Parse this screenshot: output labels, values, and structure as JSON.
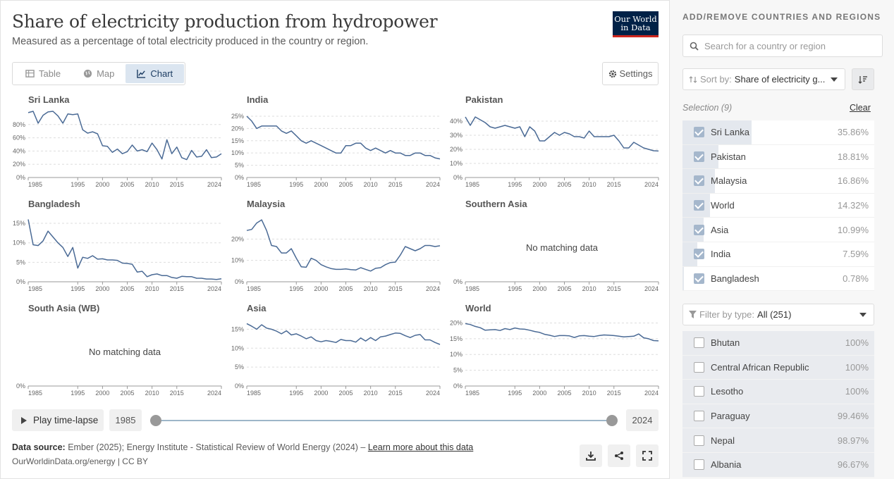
{
  "header": {
    "title": "Share of electricity production from hydropower",
    "subtitle": "Measured as a percentage of total electricity produced in the country or region.",
    "logo_line1": "Our World",
    "logo_line2": "in Data"
  },
  "tabs": [
    {
      "label": "Table",
      "icon": "table-icon"
    },
    {
      "label": "Map",
      "icon": "globe-icon"
    },
    {
      "label": "Chart",
      "icon": "chart-icon",
      "active": true
    }
  ],
  "settings_label": "Settings",
  "no_data_text": "No matching data",
  "chart_data": [
    {
      "type": "line",
      "name": "Sri Lanka",
      "ylim": [
        0,
        100
      ],
      "yticks": [
        "0%",
        "20%",
        "40%",
        "60%",
        "80%"
      ],
      "ytick_values": [
        0,
        20,
        40,
        60,
        80
      ],
      "x": [
        1985,
        1986,
        1987,
        1988,
        1989,
        1990,
        1991,
        1992,
        1993,
        1994,
        1995,
        1996,
        1997,
        1998,
        1999,
        2000,
        2001,
        2002,
        2003,
        2004,
        2005,
        2006,
        2007,
        2008,
        2009,
        2010,
        2011,
        2012,
        2013,
        2014,
        2015,
        2016,
        2017,
        2018,
        2019,
        2020,
        2021,
        2022,
        2023,
        2024
      ],
      "y": [
        98,
        100,
        82,
        94,
        99,
        100,
        93,
        82,
        96,
        95,
        96,
        72,
        67,
        69,
        66,
        48,
        47,
        38,
        43,
        36,
        39,
        49,
        40,
        42,
        39,
        52,
        42,
        28,
        57,
        36,
        46,
        30,
        27,
        41,
        31,
        32,
        42,
        30,
        31,
        36
      ]
    },
    {
      "type": "line",
      "name": "India",
      "ylim": [
        0,
        27
      ],
      "yticks": [
        "0%",
        "5%",
        "10%",
        "15%",
        "20%",
        "25%"
      ],
      "ytick_values": [
        0,
        5,
        10,
        15,
        20,
        25
      ],
      "x": [
        1985,
        1986,
        1987,
        1988,
        1989,
        1990,
        1991,
        1992,
        1993,
        1994,
        1995,
        1996,
        1997,
        1998,
        1999,
        2000,
        2001,
        2002,
        2003,
        2004,
        2005,
        2006,
        2007,
        2008,
        2009,
        2010,
        2011,
        2012,
        2013,
        2014,
        2015,
        2016,
        2017,
        2018,
        2019,
        2020,
        2021,
        2022,
        2023,
        2024
      ],
      "y": [
        25,
        23,
        20,
        21,
        21,
        21,
        21,
        19,
        18,
        19,
        17,
        15,
        14,
        15,
        14,
        13,
        12,
        11,
        10,
        10,
        13,
        13,
        14,
        14,
        12,
        11,
        12,
        11,
        10,
        11,
        10,
        10,
        9,
        9,
        10,
        10,
        9,
        9,
        8,
        7.59
      ]
    },
    {
      "type": "line",
      "name": "Pakistan",
      "ylim": [
        0,
        47
      ],
      "yticks": [
        "0%",
        "10%",
        "20%",
        "30%",
        "40%"
      ],
      "ytick_values": [
        0,
        10,
        20,
        30,
        40
      ],
      "x": [
        1985,
        1986,
        1987,
        1988,
        1989,
        1990,
        1991,
        1992,
        1993,
        1994,
        1995,
        1996,
        1997,
        1998,
        1999,
        2000,
        2001,
        2002,
        2003,
        2004,
        2005,
        2006,
        2007,
        2008,
        2009,
        2010,
        2011,
        2012,
        2013,
        2014,
        2015,
        2016,
        2017,
        2018,
        2019,
        2020,
        2021,
        2022,
        2023,
        2024
      ],
      "y": [
        43,
        37,
        43,
        41,
        39,
        36,
        35,
        36,
        37,
        36,
        35,
        36,
        29,
        36,
        33,
        26,
        26,
        29,
        32,
        30,
        32,
        31,
        29,
        29,
        28,
        33,
        29,
        29,
        29,
        29,
        30,
        26,
        21,
        21,
        25,
        23,
        21,
        20,
        19,
        18.81
      ]
    },
    {
      "type": "line",
      "name": "Bangladesh",
      "ylim": [
        0,
        17
      ],
      "yticks": [
        "0%",
        "5%",
        "10%",
        "15%"
      ],
      "ytick_values": [
        0,
        5,
        10,
        15
      ],
      "x": [
        1985,
        1986,
        1987,
        1988,
        1989,
        1990,
        1991,
        1992,
        1993,
        1994,
        1995,
        1996,
        1997,
        1998,
        1999,
        2000,
        2001,
        2002,
        2003,
        2004,
        2005,
        2006,
        2007,
        2008,
        2009,
        2010,
        2011,
        2012,
        2013,
        2014,
        2015,
        2016,
        2017,
        2018,
        2019,
        2020,
        2021,
        2022,
        2023,
        2024
      ],
      "y": [
        16,
        9.5,
        9.3,
        10.5,
        13,
        11.5,
        10,
        8.8,
        6.5,
        8.8,
        3.5,
        6.3,
        6,
        6.7,
        5.8,
        5.9,
        5.6,
        5.6,
        5.5,
        4.8,
        4.7,
        4.5,
        2.5,
        2.7,
        1.3,
        1.8,
        2,
        1.6,
        1.6,
        1.1,
        0.9,
        1.4,
        1.3,
        1.3,
        0.9,
        0.9,
        0.7,
        0.7,
        0.6,
        0.78
      ]
    },
    {
      "type": "line",
      "name": "Malaysia",
      "ylim": [
        0,
        31
      ],
      "yticks": [
        "0%",
        "10%",
        "20%"
      ],
      "ytick_values": [
        0,
        10,
        20
      ],
      "x": [
        1985,
        1986,
        1987,
        1988,
        1989,
        1990,
        1991,
        1992,
        1993,
        1994,
        1995,
        1996,
        1997,
        1998,
        1999,
        2000,
        2001,
        2002,
        2003,
        2004,
        2005,
        2006,
        2007,
        2008,
        2009,
        2010,
        2011,
        2012,
        2013,
        2014,
        2015,
        2016,
        2017,
        2018,
        2019,
        2020,
        2021,
        2022,
        2023,
        2024
      ],
      "y": [
        24,
        24.5,
        27.5,
        29,
        24,
        17,
        16.5,
        13.5,
        13.5,
        15.5,
        11,
        7,
        6.8,
        11,
        10,
        8,
        7,
        6.2,
        5.8,
        5.8,
        6,
        5.7,
        5.5,
        6.6,
        5.8,
        5,
        6.3,
        6.6,
        8,
        9,
        9.2,
        12.5,
        16.5,
        15.5,
        14.5,
        15.5,
        17,
        17,
        16.5,
        16.86
      ]
    },
    {
      "type": "line",
      "name": "Southern Asia",
      "nodata": true,
      "ylim": [
        0,
        20
      ],
      "yticks": [
        "0%"
      ],
      "ytick_values": [
        0
      ],
      "x": [],
      "y": []
    },
    {
      "type": "line",
      "name": "South Asia (WB)",
      "nodata": true,
      "ylim": [
        0,
        20
      ],
      "yticks": [
        "0%"
      ],
      "ytick_values": [
        0
      ],
      "x": [],
      "y": []
    },
    {
      "type": "line",
      "name": "Asia",
      "ylim": [
        0,
        17.5
      ],
      "yticks": [
        "0%",
        "5%",
        "10%",
        "15%"
      ],
      "ytick_values": [
        0,
        5,
        10,
        15
      ],
      "x": [
        1985,
        1986,
        1987,
        1988,
        1989,
        1990,
        1991,
        1992,
        1993,
        1994,
        1995,
        1996,
        1997,
        1998,
        1999,
        2000,
        2001,
        2002,
        2003,
        2004,
        2005,
        2006,
        2007,
        2008,
        2009,
        2010,
        2011,
        2012,
        2013,
        2014,
        2015,
        2016,
        2017,
        2018,
        2019,
        2020,
        2021,
        2022,
        2023,
        2024
      ],
      "y": [
        16.5,
        15.8,
        15,
        16.2,
        15.3,
        15,
        14.5,
        13.8,
        14.6,
        13.5,
        13.8,
        13.2,
        12.5,
        13,
        12,
        11.7,
        12,
        11.8,
        11.5,
        12.3,
        12,
        12,
        11.6,
        12.7,
        11.9,
        12.8,
        12,
        13,
        13.2,
        13.6,
        14,
        13.9,
        13.3,
        12.8,
        13.4,
        13.6,
        12.2,
        12.2,
        11.5,
        10.99
      ]
    },
    {
      "type": "line",
      "name": "World",
      "ylim": [
        0,
        21
      ],
      "yticks": [
        "0%",
        "5%",
        "10%",
        "15%",
        "20%"
      ],
      "ytick_values": [
        0,
        5,
        10,
        15,
        20
      ],
      "x": [
        1985,
        1986,
        1987,
        1988,
        1989,
        1990,
        1991,
        1992,
        1993,
        1994,
        1995,
        1996,
        1997,
        1998,
        1999,
        2000,
        2001,
        2002,
        2003,
        2004,
        2005,
        2006,
        2007,
        2008,
        2009,
        2010,
        2011,
        2012,
        2013,
        2014,
        2015,
        2016,
        2017,
        2018,
        2019,
        2020,
        2021,
        2022,
        2023,
        2024
      ],
      "y": [
        19.8,
        19.5,
        18.9,
        18.5,
        17.7,
        17.8,
        17.9,
        17.6,
        18.2,
        17.9,
        18.4,
        18.1,
        18,
        17.7,
        17.3,
        17,
        16.4,
        16.1,
        15.7,
        16,
        16,
        15.9,
        15.4,
        15.9,
        16,
        15.8,
        15.7,
        16,
        16.2,
        16.1,
        16,
        15.8,
        15.6,
        15.7,
        15.8,
        16.5,
        15.3,
        15,
        14.4,
        14.32
      ]
    }
  ],
  "x_ticks": [
    "1985",
    "1995",
    "2000",
    "2005",
    "2010",
    "2015",
    "2024"
  ],
  "x_tick_values": [
    1985,
    1995,
    2000,
    2005,
    2010,
    2015,
    2024
  ],
  "timeline": {
    "play_label": "Play time-lapse",
    "start_year": "1985",
    "end_year": "2024"
  },
  "footer": {
    "source_prefix": "Data source:",
    "source_text": " Ember (2025); Energy Institute - Statistical Review of World Energy (2024) – ",
    "learn_more": "Learn more about this data",
    "license": "OurWorldinData.org/energy | CC BY"
  },
  "sidebar": {
    "title": "ADD/REMOVE COUNTRIES AND REGIONS",
    "search_placeholder": "Search for a country or region",
    "sort_prefix": "Sort by:",
    "sort_value": "Share of electricity g...",
    "selection_label": "Selection (9)",
    "clear_label": "Clear",
    "selected": [
      {
        "name": "Sri Lanka",
        "value": "35.86%",
        "share": 0.3586
      },
      {
        "name": "Pakistan",
        "value": "18.81%",
        "share": 0.1881
      },
      {
        "name": "Malaysia",
        "value": "16.86%",
        "share": 0.1686
      },
      {
        "name": "World",
        "value": "14.32%",
        "share": 0.1432
      },
      {
        "name": "Asia",
        "value": "10.99%",
        "share": 0.1099
      },
      {
        "name": "India",
        "value": "7.59%",
        "share": 0.0759
      },
      {
        "name": "Bangladesh",
        "value": "0.78%",
        "share": 0.0078
      }
    ],
    "filter_prefix": "Filter by type:",
    "filter_value": "All (251)",
    "available": [
      {
        "name": "Bhutan",
        "value": "100%"
      },
      {
        "name": "Central African Republic",
        "value": "100%"
      },
      {
        "name": "Lesotho",
        "value": "100%"
      },
      {
        "name": "Paraguay",
        "value": "99.46%"
      },
      {
        "name": "Nepal",
        "value": "98.97%"
      },
      {
        "name": "Albania",
        "value": "96.67%"
      }
    ]
  },
  "colors": {
    "line": "#4a6a95",
    "accent": "#002147",
    "active_tab": "#dbe5f0",
    "logo_red": "#ce261e"
  }
}
